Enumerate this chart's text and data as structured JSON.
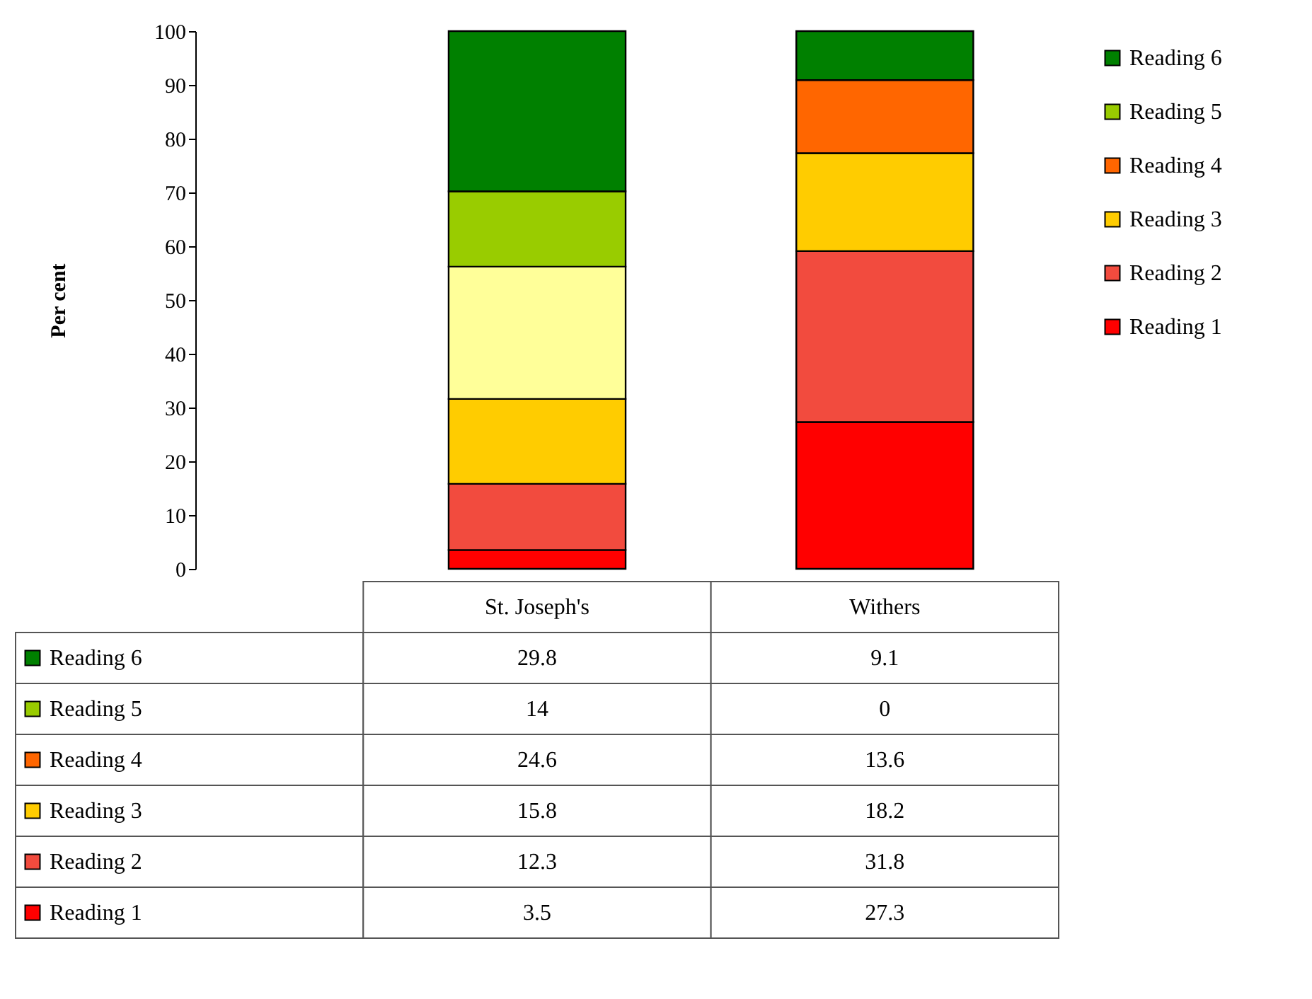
{
  "chart_data": {
    "type": "bar",
    "stacked": true,
    "ylabel": "Per cent",
    "categories": [
      "St. Joseph's",
      "Withers"
    ],
    "series": [
      {
        "name": "Reading 1",
        "color": "#ff0000",
        "values": [
          3.5,
          27.3
        ]
      },
      {
        "name": "Reading 2",
        "color": "#f24b3e",
        "values": [
          12.3,
          31.8
        ]
      },
      {
        "name": "Reading 3",
        "color": "#ffcc00",
        "values": [
          15.8,
          18.2
        ]
      },
      {
        "name": "Reading 4",
        "color": "#ff6600",
        "colors": [
          "#ffff99",
          "#ff6600"
        ],
        "values": [
          24.6,
          13.6
        ]
      },
      {
        "name": "Reading 5",
        "color": "#99cc00",
        "values": [
          14,
          0
        ]
      },
      {
        "name": "Reading 6",
        "color": "#008000",
        "values": [
          29.8,
          9.1
        ]
      }
    ],
    "ylim": [
      0,
      100
    ],
    "yticks": [
      0,
      10,
      20,
      30,
      40,
      50,
      60,
      70,
      80,
      90,
      100
    ],
    "grid": false,
    "legend": "right",
    "data_labels": true
  }
}
